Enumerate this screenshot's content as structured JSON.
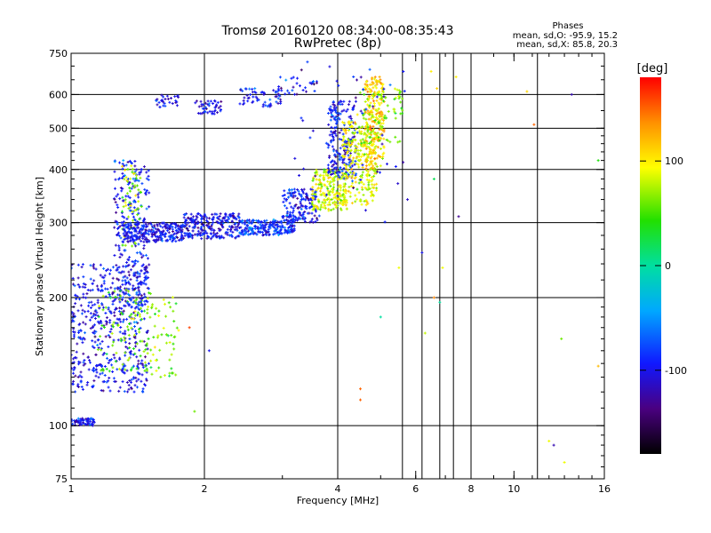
{
  "chart_data": {
    "type": "scatter",
    "title": "Tromsø 20160120 08:34:00-08:35:43",
    "subtitle": "RwPretec (8p)",
    "xlabel": "Frequency [MHz]",
    "ylabel": "Stationary phase Virtual Height [km]",
    "x_scale": "log",
    "y_scale": "log",
    "xlim": [
      1,
      16
    ],
    "ylim": [
      75,
      750
    ],
    "x_ticks": [
      1,
      2,
      4,
      6,
      8,
      10,
      16
    ],
    "x_tick_labels": [
      "1",
      "2",
      "4",
      "6",
      "8",
      "10",
      "16"
    ],
    "x_grid": [
      2,
      4,
      8
    ],
    "x_minor_grid": [
      5.6,
      6.2,
      6.8,
      7.3,
      11.3
    ],
    "y_ticks": [
      75,
      100,
      200,
      300,
      400,
      500,
      600,
      750
    ],
    "y_tick_labels": [
      "75",
      "100",
      "200",
      "300",
      "400",
      "500",
      "600",
      "750"
    ],
    "y_grid": [
      100,
      200,
      300,
      400,
      500,
      600
    ],
    "grid": true,
    "stats": {
      "heading": "Phases",
      "o_line": "mean, sd,O: -95.9, 15.2",
      "x_line": "mean, sd,X:  85.8, 20.3"
    },
    "colorbar": {
      "label": "[deg]",
      "range": [
        -180,
        180
      ],
      "ticks": [
        100,
        0,
        -100
      ],
      "tick_labels": [
        "100",
        "0",
        "-100"
      ]
    },
    "clusters": [
      {
        "x": [
          1.0,
          1.13
        ],
        "y": [
          100,
          104
        ],
        "phase": -100,
        "count": 70
      },
      {
        "x": [
          1.0,
          1.5
        ],
        "y": [
          120,
          240
        ],
        "phase": -100,
        "count": 520
      },
      {
        "x": [
          1.15,
          1.75
        ],
        "y": [
          130,
          210
        ],
        "phase": 60,
        "count": 160
      },
      {
        "x": [
          1.25,
          1.5
        ],
        "y": [
          190,
          420
        ],
        "phase": -95,
        "count": 240
      },
      {
        "x": [
          1.3,
          1.45
        ],
        "y": [
          260,
          410
        ],
        "phase": 70,
        "count": 60
      },
      {
        "x": [
          1.3,
          1.8
        ],
        "y": [
          270,
          300
        ],
        "phase": -100,
        "count": 280
      },
      {
        "x": [
          1.8,
          2.4
        ],
        "y": [
          275,
          315
        ],
        "phase": -100,
        "count": 250
      },
      {
        "x": [
          2.4,
          3.2
        ],
        "y": [
          280,
          305
        ],
        "phase": -85,
        "count": 220
      },
      {
        "x": [
          3.0,
          3.6
        ],
        "y": [
          300,
          360
        ],
        "phase": -95,
        "count": 150
      },
      {
        "x": [
          3.5,
          4.2
        ],
        "y": [
          320,
          400
        ],
        "phase": 85,
        "count": 210
      },
      {
        "x": [
          3.8,
          4.4
        ],
        "y": [
          380,
          580
        ],
        "phase": -95,
        "count": 200
      },
      {
        "x": [
          4.1,
          4.9
        ],
        "y": [
          330,
          520
        ],
        "phase": 90,
        "count": 260
      },
      {
        "x": [
          4.6,
          5.1
        ],
        "y": [
          400,
          660
        ],
        "phase": 110,
        "count": 220
      },
      {
        "x": [
          4.4,
          5.6
        ],
        "y": [
          460,
          620
        ],
        "phase": 60,
        "count": 90
      },
      {
        "x": [
          1.55,
          1.75
        ],
        "y": [
          560,
          600
        ],
        "phase": -100,
        "count": 30
      },
      {
        "x": [
          1.9,
          2.2
        ],
        "y": [
          540,
          580
        ],
        "phase": -100,
        "count": 45
      },
      {
        "x": [
          2.4,
          3.0
        ],
        "y": [
          560,
          620
        ],
        "phase": -95,
        "count": 60
      },
      {
        "x": [
          2.9,
          3.6
        ],
        "y": [
          600,
          660
        ],
        "phase": -100,
        "count": 30
      },
      {
        "x": [
          3.2,
          5.8
        ],
        "y": [
          300,
          720
        ],
        "phase": -100,
        "count": 60
      }
    ],
    "points": [
      {
        "x": 6.5,
        "y": 680,
        "phase": 100
      },
      {
        "x": 7.4,
        "y": 660,
        "phase": 100
      },
      {
        "x": 6.7,
        "y": 620,
        "phase": 110
      },
      {
        "x": 10.7,
        "y": 610,
        "phase": 110
      },
      {
        "x": 13.5,
        "y": 600,
        "phase": -120
      },
      {
        "x": 11.1,
        "y": 510,
        "phase": 150
      },
      {
        "x": 15.5,
        "y": 420,
        "phase": 40
      },
      {
        "x": 6.6,
        "y": 380,
        "phase": 20
      },
      {
        "x": 7.5,
        "y": 310,
        "phase": -130
      },
      {
        "x": 6.2,
        "y": 255,
        "phase": -100
      },
      {
        "x": 5.5,
        "y": 235,
        "phase": 90
      },
      {
        "x": 6.9,
        "y": 235,
        "phase": 90
      },
      {
        "x": 6.6,
        "y": 200,
        "phase": 140
      },
      {
        "x": 6.8,
        "y": 195,
        "phase": 0
      },
      {
        "x": 5.0,
        "y": 180,
        "phase": 0
      },
      {
        "x": 6.3,
        "y": 165,
        "phase": 80
      },
      {
        "x": 12.8,
        "y": 160,
        "phase": 60
      },
      {
        "x": 15.5,
        "y": 138,
        "phase": 120
      },
      {
        "x": 4.5,
        "y": 122,
        "phase": 150
      },
      {
        "x": 4.5,
        "y": 115,
        "phase": 150
      },
      {
        "x": 12.0,
        "y": 92,
        "phase": 90
      },
      {
        "x": 12.3,
        "y": 90,
        "phase": -120
      },
      {
        "x": 13.0,
        "y": 82,
        "phase": 90
      },
      {
        "x": 1.85,
        "y": 170,
        "phase": 160
      },
      {
        "x": 2.05,
        "y": 150,
        "phase": -100
      },
      {
        "x": 1.9,
        "y": 108,
        "phase": 60
      }
    ]
  }
}
